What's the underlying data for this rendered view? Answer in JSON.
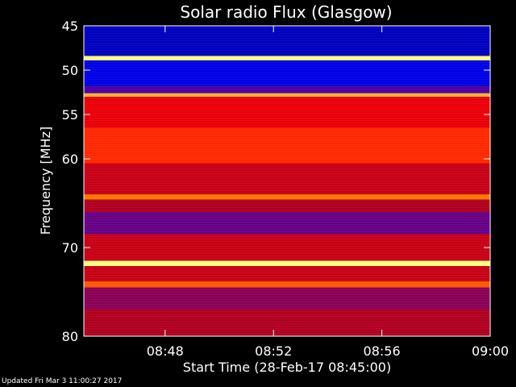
{
  "chart_data": {
    "type": "heatmap",
    "title": "Solar radio Flux (Glasgow)",
    "xlabel": "Start Time (28-Feb-17 08:45:00)",
    "ylabel": "Frequency [MHz]",
    "x_ticks": [
      "08:48",
      "08:52",
      "08:56",
      "09:00"
    ],
    "x_tick_minutes": [
      48,
      52,
      56,
      60
    ],
    "x_range_minutes": [
      45,
      60
    ],
    "y_ticks": [
      45,
      50,
      55,
      60,
      70,
      80
    ],
    "y_range": [
      45,
      80
    ],
    "bands": [
      {
        "from": 45.0,
        "to": 48.4,
        "level": 0.1
      },
      {
        "from": 48.4,
        "to": 48.9,
        "level": 1.0
      },
      {
        "from": 48.9,
        "to": 51.8,
        "level": 0.14
      },
      {
        "from": 51.8,
        "to": 52.6,
        "level": 0.3
      },
      {
        "from": 52.6,
        "to": 53.0,
        "level": 0.9
      },
      {
        "from": 53.0,
        "to": 56.5,
        "level": 0.62
      },
      {
        "from": 56.5,
        "to": 60.5,
        "level": 0.72
      },
      {
        "from": 60.5,
        "to": 64.0,
        "level": 0.55
      },
      {
        "from": 64.0,
        "to": 64.6,
        "level": 0.82
      },
      {
        "from": 64.6,
        "to": 66.0,
        "level": 0.5
      },
      {
        "from": 66.0,
        "to": 68.5,
        "level": 0.35
      },
      {
        "from": 68.5,
        "to": 71.5,
        "level": 0.55
      },
      {
        "from": 71.5,
        "to": 72.1,
        "level": 1.0
      },
      {
        "from": 72.1,
        "to": 73.8,
        "level": 0.55
      },
      {
        "from": 73.8,
        "to": 74.5,
        "level": 0.78
      },
      {
        "from": 74.5,
        "to": 77.0,
        "level": 0.42
      },
      {
        "from": 77.0,
        "to": 80.0,
        "level": 0.5
      }
    ],
    "colormap": [
      "#000060",
      "#0000ff",
      "#600090",
      "#b00020",
      "#ff0000",
      "#ff8000",
      "#ffff80"
    ]
  },
  "footer": {
    "updated": "Updated Fri Mar  3 11:00:27 2017"
  }
}
